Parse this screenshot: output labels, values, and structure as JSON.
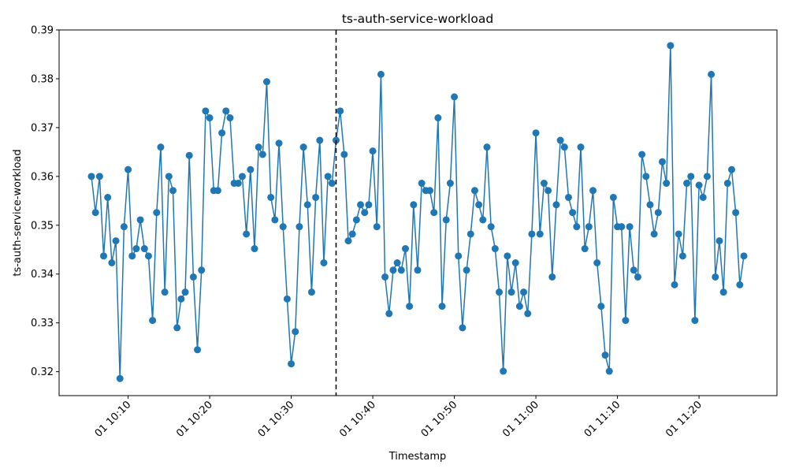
{
  "chart_data": {
    "type": "line",
    "title": "ts-auth-service-workload",
    "xlabel": "Timestamp",
    "ylabel": "ts-auth-service-workload",
    "ylim": [
      0.3151,
      0.39
    ],
    "grid": false,
    "yticks": [
      0.32,
      0.33,
      0.34,
      0.35,
      0.36,
      0.37,
      0.38,
      0.39
    ],
    "ytick_labels": [
      "0.32",
      "0.33",
      "0.34",
      "0.35",
      "0.36",
      "0.37",
      "0.38",
      "0.39"
    ],
    "xticks": [
      "01 10:10",
      "01 10:20",
      "01 10:30",
      "01 10:40",
      "01 10:50",
      "01 11:00",
      "01 11:10",
      "01 11:20"
    ],
    "x_start": "01 10:05:30",
    "x_step_seconds": 30,
    "vline": {
      "x": "01 10:35:30",
      "style": "dashed",
      "color": "#000000"
    },
    "series": [
      {
        "color": "#1f77b4",
        "values": [
          0.36,
          0.3526,
          0.36,
          0.3437,
          0.3557,
          0.3423,
          0.3468,
          0.3186,
          0.3497,
          0.3614,
          0.3437,
          0.3452,
          0.3511,
          0.3452,
          0.3437,
          0.3305,
          0.3526,
          0.366,
          0.3363,
          0.36,
          0.3571,
          0.329,
          0.3349,
          0.3363,
          0.3643,
          0.3394,
          0.3245,
          0.3408,
          0.3734,
          0.372,
          0.3571,
          0.3571,
          0.3689,
          0.3734,
          0.372,
          0.3586,
          0.3586,
          0.36,
          0.3482,
          0.3614,
          0.3452,
          0.366,
          0.3645,
          0.3794,
          0.3557,
          0.3511,
          0.3668,
          0.3497,
          0.3349,
          0.3216,
          0.3282,
          0.3497,
          0.366,
          0.3542,
          0.3363,
          0.3557,
          0.3674,
          0.3423,
          0.36,
          0.3586,
          0.3674,
          0.3734,
          0.3645,
          0.3468,
          0.3482,
          0.3511,
          0.3542,
          0.3526,
          0.3542,
          0.3652,
          0.3497,
          0.3809,
          0.3394,
          0.3319,
          0.3408,
          0.3423,
          0.3408,
          0.3452,
          0.3334,
          0.3542,
          0.3408,
          0.3586,
          0.3571,
          0.3571,
          0.3526,
          0.372,
          0.3334,
          0.3511,
          0.3586,
          0.3763,
          0.3437,
          0.329,
          0.3408,
          0.3482,
          0.3571,
          0.3542,
          0.3511,
          0.366,
          0.3497,
          0.3452,
          0.3363,
          0.3201,
          0.3437,
          0.3363,
          0.3423,
          0.3334,
          0.3363,
          0.3319,
          0.3482,
          0.3689,
          0.3482,
          0.3586,
          0.3571,
          0.3394,
          0.3542,
          0.3674,
          0.366,
          0.3557,
          0.3526,
          0.3497,
          0.366,
          0.3452,
          0.3497,
          0.3571,
          0.3423,
          0.3334,
          0.3234,
          0.3201,
          0.3557,
          0.3497,
          0.3497,
          0.3305,
          0.3497,
          0.3408,
          0.3394,
          0.3645,
          0.36,
          0.3542,
          0.3482,
          0.3526,
          0.363,
          0.3586,
          0.3868,
          0.3378,
          0.3482,
          0.3437,
          0.3586,
          0.36,
          0.3305,
          0.3582,
          0.3557,
          0.36,
          0.3809,
          0.3394,
          0.3468,
          0.3363,
          0.3586,
          0.3614,
          0.3526,
          0.3378,
          0.3437
        ]
      }
    ]
  }
}
